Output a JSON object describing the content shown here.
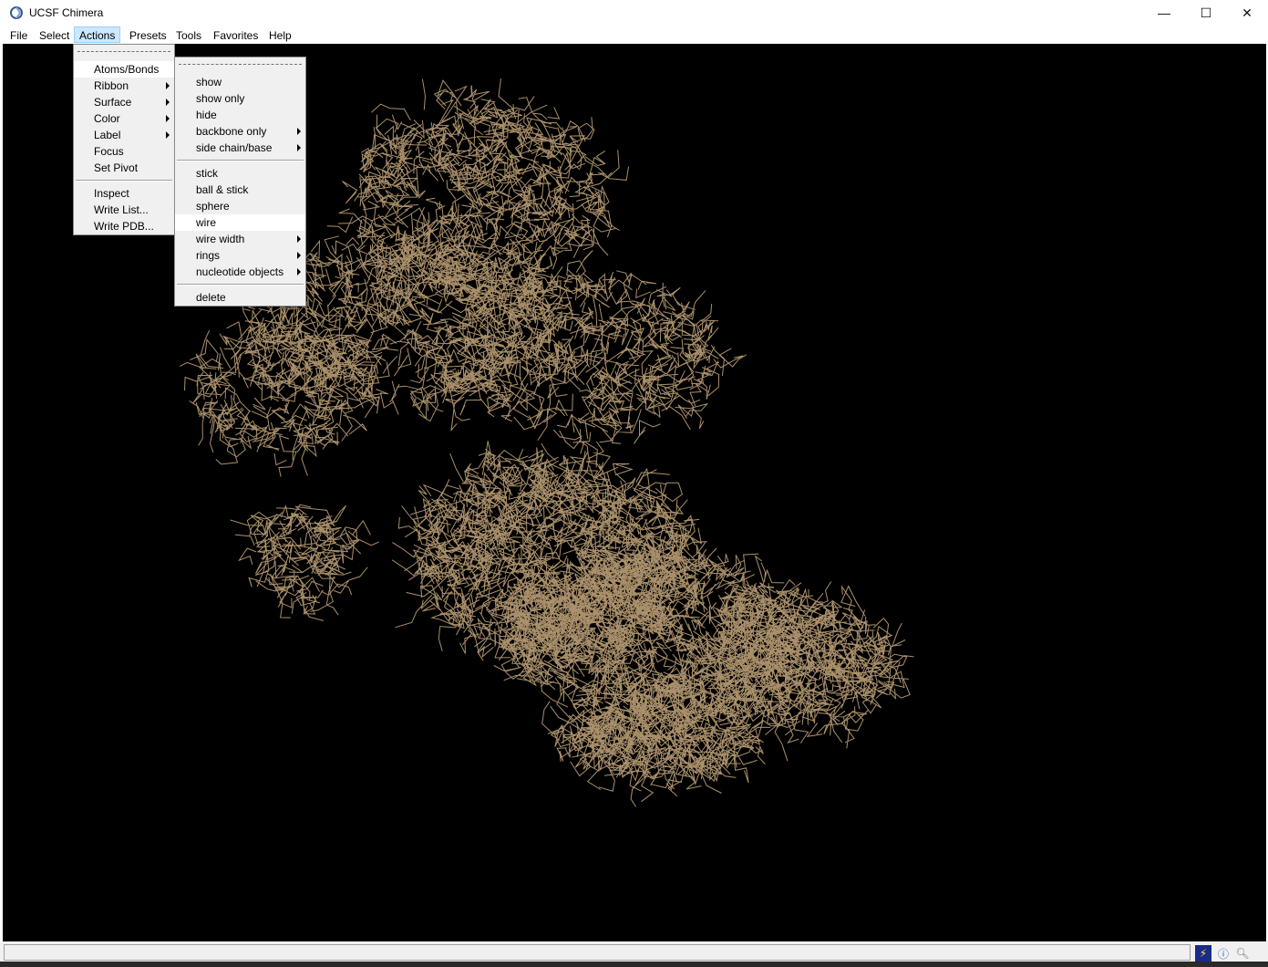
{
  "window": {
    "title": "UCSF Chimera",
    "minimize_glyph": "—",
    "maximize_glyph": "☐",
    "close_glyph": "✕"
  },
  "menubar": {
    "items": [
      "File",
      "Select",
      "Actions",
      "Presets",
      "Tools",
      "Favorites",
      "Help"
    ],
    "active": "Actions"
  },
  "actions_menu": {
    "group1": [
      "Atoms/Bonds",
      "Ribbon",
      "Surface",
      "Color",
      "Label",
      "Focus",
      "Set Pivot"
    ],
    "group2": [
      "Inspect",
      "Write List...",
      "Write PDB..."
    ]
  },
  "atoms_bonds_menu": {
    "group1": [
      "show",
      "show only",
      "hide",
      "backbone only",
      "side chain/base"
    ],
    "group2": [
      "stick",
      "ball & stick",
      "sphere",
      "wire",
      "wire width",
      "rings",
      "nucleotide objects"
    ],
    "group3": [
      "delete"
    ],
    "highlighted": "wire"
  },
  "viewport": {
    "background": "#000000",
    "structure_color": "#c8a97e"
  },
  "status": {
    "text": "",
    "icons": [
      "lightning-icon",
      "info-icon",
      "magnify-icon"
    ]
  }
}
